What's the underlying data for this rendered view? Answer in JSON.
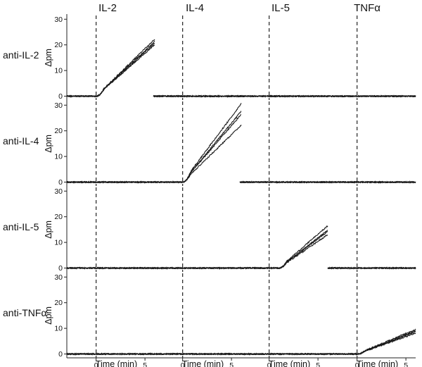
{
  "chart_data": {
    "type": "line",
    "layout": "4x4 grid of small-multiple panels",
    "columns": [
      "IL-2",
      "IL-4",
      "IL-5",
      "TNFα"
    ],
    "rows": [
      "anti-IL-2",
      "anti-IL-4",
      "anti-IL-5",
      "anti-TNFα"
    ],
    "ylabel": "Δpm",
    "xlabel": "Time (min)",
    "xlim": [
      -3,
      6
    ],
    "ylim": [
      -1.5,
      32
    ],
    "yticks": [
      0,
      10,
      20,
      30
    ],
    "xticks": [
      0,
      5
    ],
    "injection_time": 0,
    "grid": false,
    "legend": "none",
    "traces_per_panel": 4,
    "panels": [
      {
        "row": "anti-IL-2",
        "column": "IL-2",
        "slopes": [
          3.35,
          3.45,
          3.55,
          3.7
        ],
        "onset": 0
      },
      {
        "row": "anti-IL-2",
        "column": "IL-4",
        "slopes": [
          0,
          0,
          0,
          0
        ],
        "onset": 0
      },
      {
        "row": "anti-IL-2",
        "column": "IL-5",
        "slopes": [
          0,
          0,
          0,
          0
        ],
        "onset": 0
      },
      {
        "row": "anti-IL-2",
        "column": "TNFα",
        "slopes": [
          0,
          0,
          0,
          0
        ],
        "onset": 0
      },
      {
        "row": "anti-IL-4",
        "column": "IL-2",
        "slopes": [
          0,
          0,
          0,
          0
        ],
        "onset": 0
      },
      {
        "row": "anti-IL-4",
        "column": "IL-4",
        "slopes": [
          3.7,
          4.4,
          4.6,
          5.1
        ],
        "onset": 0
      },
      {
        "row": "anti-IL-4",
        "column": "IL-5",
        "slopes": [
          0,
          0,
          0,
          0
        ],
        "onset": 0
      },
      {
        "row": "anti-IL-4",
        "column": "TNFα",
        "slopes": [
          0,
          0,
          0,
          0
        ],
        "onset": 0
      },
      {
        "row": "anti-IL-5",
        "column": "IL-2",
        "slopes": [
          0,
          0,
          0,
          0
        ],
        "onset": 0
      },
      {
        "row": "anti-IL-5",
        "column": "IL-4",
        "slopes": [
          0,
          0,
          0,
          0
        ],
        "onset": 0
      },
      {
        "row": "anti-IL-5",
        "column": "IL-5",
        "slopes": [
          2.6,
          2.85,
          2.95,
          3.3
        ],
        "onset": 1
      },
      {
        "row": "anti-IL-5",
        "column": "TNFα",
        "slopes": [
          0,
          0,
          0,
          0
        ],
        "onset": 0
      },
      {
        "row": "anti-TNFα",
        "column": "IL-2",
        "slopes": [
          0,
          0,
          0,
          0
        ],
        "onset": 0
      },
      {
        "row": "anti-TNFα",
        "column": "IL-4",
        "slopes": [
          0,
          0,
          0,
          0
        ],
        "onset": 0
      },
      {
        "row": "anti-TNFα",
        "column": "IL-5",
        "slopes": [
          0,
          0,
          0,
          0
        ],
        "onset": 0
      },
      {
        "row": "anti-TNFα",
        "column": "TNFα",
        "slopes": [
          1.35,
          1.45,
          1.5,
          1.6
        ],
        "onset": 0
      }
    ]
  }
}
